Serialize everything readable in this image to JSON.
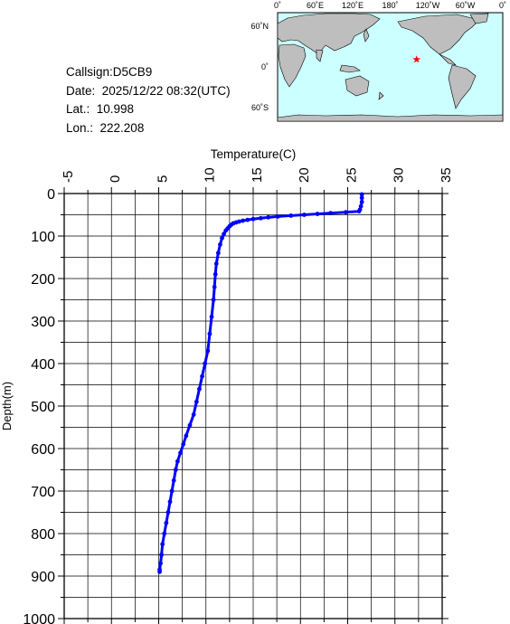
{
  "info": {
    "callsign": "Callsign:D5CB9",
    "date": "Date:  2025/12/22 08:32(UTC)",
    "lat": "Lat.:  10.998",
    "lon": "Lon.:  222.208"
  },
  "map": {
    "lon_labels": [
      "0˚",
      "60˚E",
      "120˚E",
      "180˚",
      "120˚W",
      "60˚W",
      "0˚"
    ],
    "lat_labels": [
      "60˚N",
      "0˚",
      "60˚S"
    ],
    "marker": {
      "lat": 10.998,
      "lon": 222.208,
      "color": "#ff0000"
    },
    "ocean_color": "#ccffff",
    "land_color": "#bebebe"
  },
  "chart_data": {
    "type": "line",
    "xlabel": "Temperature(C)",
    "ylabel": "Depth(m)",
    "xlim": [
      -5,
      35
    ],
    "ylim": [
      0,
      1000
    ],
    "x_axis_position": "top",
    "y_inverted": true,
    "grid": true,
    "x_ticks": [
      "-5",
      "0",
      "5",
      "10",
      "15",
      "20",
      "25",
      "30",
      "35"
    ],
    "y_ticks": [
      "0",
      "100",
      "200",
      "300",
      "400",
      "500",
      "600",
      "700",
      "800",
      "900",
      "1000"
    ],
    "series": [
      {
        "color": "#0000ff",
        "x": [
          26.5,
          26.5,
          26.5,
          26.4,
          26.3,
          26.2,
          24.8,
          23.2,
          21.8,
          20.4,
          19.0,
          17.6,
          16.6,
          15.8,
          15.0,
          14.4,
          13.9,
          13.5,
          13.2,
          12.9,
          12.7,
          12.5,
          12.3,
          12.1,
          11.9,
          11.7,
          11.5,
          11.3,
          11.1,
          11.0,
          10.9,
          10.8,
          10.6,
          10.4,
          10.2,
          9.9,
          9.6,
          9.3,
          9.0,
          8.7,
          8.3,
          7.9,
          7.6,
          7.3,
          7.0,
          6.8,
          6.6,
          6.4,
          6.2,
          6.0,
          5.8,
          5.6,
          5.4,
          5.3,
          5.2,
          5.1,
          5.1
        ],
        "y": [
          2,
          10,
          20,
          30,
          38,
          42,
          44,
          46,
          48,
          50,
          52,
          54,
          56,
          58,
          60,
          62,
          64,
          66,
          68,
          70,
          73,
          77,
          82,
          87,
          95,
          105,
          120,
          140,
          165,
          190,
          220,
          250,
          290,
          330,
          370,
          400,
          430,
          460,
          490,
          520,
          545,
          570,
          590,
          610,
          630,
          650,
          675,
          700,
          725,
          750,
          775,
          800,
          825,
          850,
          870,
          885,
          890
        ]
      }
    ]
  }
}
